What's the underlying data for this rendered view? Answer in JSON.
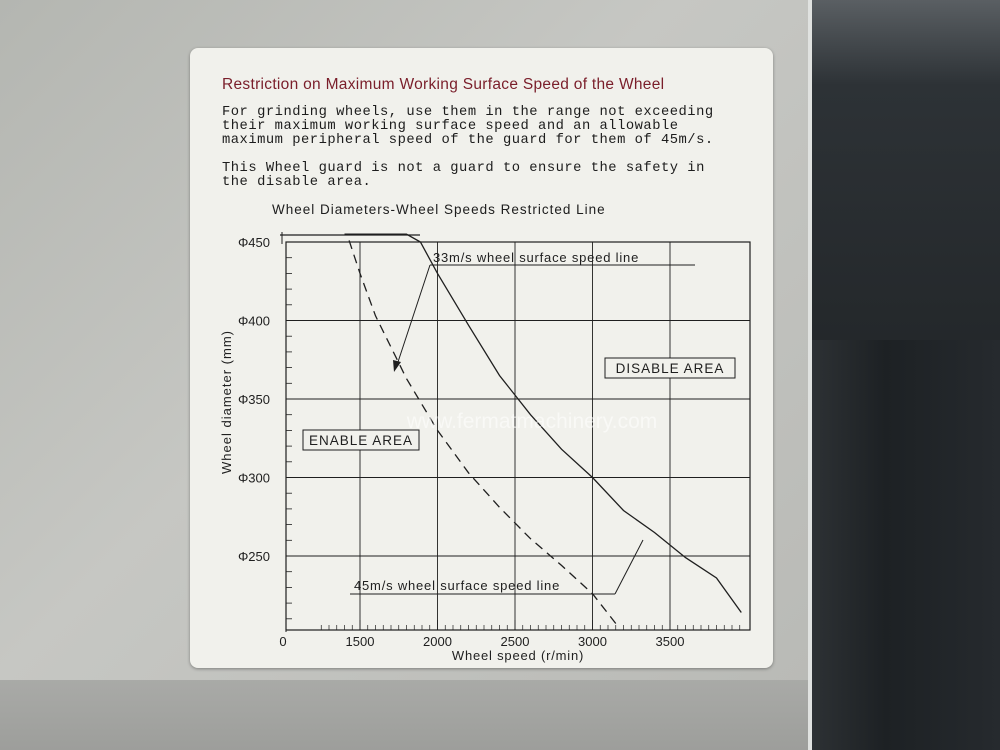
{
  "label": {
    "title": "Restriction on Maximum Working Surface Speed of the Wheel",
    "paragraph1": [
      "For grinding wheels, use them in the range not exceeding",
      "their maximum working surface speed and an allowable",
      "maximum peripheral speed of the guard for them of 45m/s."
    ],
    "paragraph2": [
      "This Wheel guard is not a guard to ensure the safety in",
      "the disable area."
    ],
    "chart_title": "Wheel Diameters-Wheel Speeds Restricted Line",
    "watermark": "www.fermatmachinery.com"
  },
  "chart_data": {
    "type": "line",
    "title": "Wheel Diameters-Wheel Speeds Restricted Line",
    "xlabel": "Wheel speed (r/min)",
    "ylabel": "Wheel diameter (mm)",
    "x_ticks": [
      "0",
      "1500",
      "2000",
      "2500",
      "3000",
      "3500"
    ],
    "y_ticks": [
      "Φ450",
      "Φ400",
      "Φ350",
      "Φ300",
      "Φ250"
    ],
    "xlim": [
      1000,
      4000
    ],
    "ylim": [
      200,
      450
    ],
    "grid": true,
    "series": [
      {
        "name": "33m/s wheel surface speed line",
        "style": "solid",
        "x": [
          1400,
          1800,
          1890,
          2000,
          2200,
          2400,
          2600,
          2800,
          3000,
          3200,
          3400,
          3600,
          3800,
          3960
        ],
        "y": [
          455,
          455,
          450,
          430,
          397,
          365,
          340,
          318,
          300,
          279,
          265,
          249,
          236,
          214
        ]
      },
      {
        "name": "45m/s wheel surface speed line",
        "style": "dashed",
        "x": [
          1430,
          1500,
          1600,
          1800,
          2000,
          2200,
          2400,
          2600,
          2800,
          3000,
          3150
        ],
        "y": [
          451,
          430,
          403,
          363,
          330,
          303,
          281,
          261,
          244,
          226,
          207
        ]
      }
    ],
    "annotations": [
      "DISABLE AREA",
      "ENABLE AREA",
      "33m/s wheel surface speed line",
      "45m/s wheel surface speed line"
    ]
  }
}
